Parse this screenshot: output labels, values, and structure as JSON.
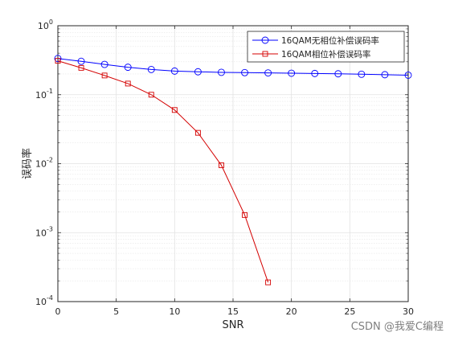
{
  "chart_data": {
    "type": "line",
    "xlabel": "SNR",
    "ylabel": "误码率",
    "xlim": [
      0,
      30
    ],
    "ylim": [
      0.0001,
      1
    ],
    "yscale": "log",
    "grid": true,
    "minor_grid": true,
    "legend_position": "top-right",
    "x_ticks": [
      0,
      5,
      10,
      15,
      20,
      25,
      30
    ],
    "x_tick_labels": [
      "0",
      "5",
      "10",
      "15",
      "20",
      "25",
      "30"
    ],
    "y_ticks": [
      0.0001,
      0.001,
      0.01,
      0.1,
      1
    ],
    "y_tick_labels": [
      {
        "base": "10",
        "exp": "-4"
      },
      {
        "base": "10",
        "exp": "-3"
      },
      {
        "base": "10",
        "exp": "-2"
      },
      {
        "base": "10",
        "exp": "-1"
      },
      {
        "base": "10",
        "exp": "0"
      }
    ],
    "series": [
      {
        "name": "16QAM无相位补偿误码率",
        "color": "#0000ff",
        "marker": "circle",
        "x": [
          0,
          2,
          4,
          6,
          8,
          10,
          12,
          14,
          16,
          18,
          20,
          22,
          24,
          26,
          28,
          30
        ],
        "y": [
          0.335,
          0.305,
          0.275,
          0.25,
          0.232,
          0.22,
          0.215,
          0.211,
          0.209,
          0.207,
          0.205,
          0.203,
          0.201,
          0.198,
          0.195,
          0.192
        ]
      },
      {
        "name": "16QAM相位补偿误码率",
        "color": "#d40000",
        "marker": "square",
        "x": [
          0,
          2,
          4,
          6,
          8,
          10,
          12,
          14,
          16,
          18
        ],
        "y": [
          0.31,
          0.245,
          0.19,
          0.145,
          0.1,
          0.06,
          0.028,
          0.0095,
          0.0018,
          0.00019
        ]
      }
    ]
  },
  "watermark": "CSDN @我爱C编程"
}
